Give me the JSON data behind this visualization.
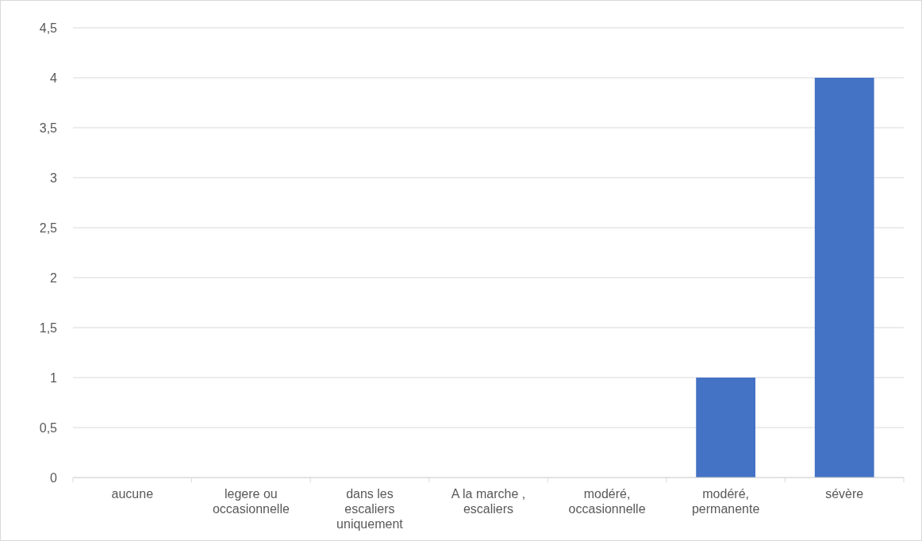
{
  "chart_data": {
    "type": "bar",
    "categories": [
      "aucune",
      "legere ou occasionnelle",
      "dans les escaliers uniquement",
      "A la marche , escaliers",
      "modéré, occasionnelle",
      "modéré, permanente",
      "sévère"
    ],
    "values": [
      0,
      0,
      0,
      0,
      0,
      1,
      4
    ],
    "color": "#4472c4",
    "ylim": [
      0,
      4.5
    ],
    "yticks": [
      0,
      {
        "value": 0.5,
        "label": "0,5"
      },
      1,
      {
        "value": 1.5,
        "label": "1,5"
      },
      2,
      {
        "value": 2.5,
        "label": "2,5"
      },
      3,
      {
        "value": 3.5,
        "label": "3,5"
      },
      4,
      {
        "value": 4.5,
        "label": "4,5"
      }
    ],
    "grid": "y"
  }
}
